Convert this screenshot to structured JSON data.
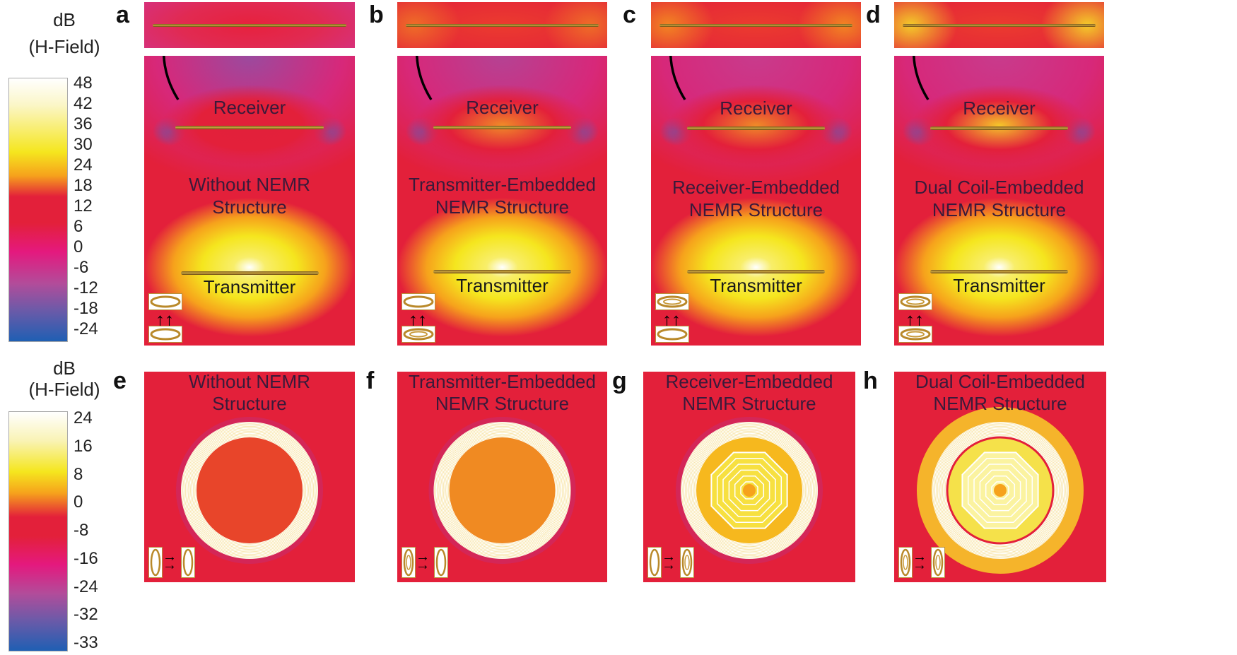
{
  "colorbar_top": {
    "title_unit": "dB",
    "title_quantity": "(H-Field)",
    "ticks": [
      "48",
      "42",
      "36",
      "30",
      "24",
      "18",
      "12",
      "6",
      "0",
      "-6",
      "-12",
      "-18",
      "-24"
    ]
  },
  "colorbar_bottom": {
    "title_unit": "dB",
    "title_quantity": "(H-Field)",
    "ticks": [
      "24",
      "16",
      "8",
      "0",
      "-8",
      "-16",
      "-24",
      "-32",
      "-33"
    ]
  },
  "colors": {
    "white": "#ffffff",
    "yellow": "#f5e61e",
    "orange": "#f6a21c",
    "red": "#e3203a",
    "magenta": "#e4197e",
    "purple": "#8a4fa6",
    "blue": "#1f5fb3"
  },
  "panels_side": [
    {
      "label": "a",
      "receiver": "Receiver",
      "transmitter": "Transmitter",
      "structure_line1": "Without NEMR",
      "structure_line2": "Structure"
    },
    {
      "label": "b",
      "receiver": "Receiver",
      "transmitter": "Transmitter",
      "structure_line1": "Transmitter-Embedded",
      "structure_line2": "NEMR Structure"
    },
    {
      "label": "c",
      "receiver": "Receiver",
      "transmitter": "Transmitter",
      "structure_line1": "Receiver-Embedded",
      "structure_line2": "NEMR Structure"
    },
    {
      "label": "d",
      "receiver": "Receiver",
      "transmitter": "Transmitter",
      "structure_line1": "Dual Coil-Embedded",
      "structure_line2": "NEMR Structure"
    }
  ],
  "panels_top": [
    {
      "label": "e",
      "structure_line1": "Without NEMR",
      "structure_line2": "Structure"
    },
    {
      "label": "f",
      "structure_line1": "Transmitter-Embedded",
      "structure_line2": "NEMR Structure"
    },
    {
      "label": "g",
      "structure_line1": "Receiver-Embedded",
      "structure_line2": "NEMR Structure"
    },
    {
      "label": "h",
      "structure_line1": "Dual Coil-Embedded",
      "structure_line2": "NEMR Structure"
    }
  ],
  "icons": {
    "vertical_arrows": "↑↑",
    "horizontal_arrows": "→→"
  }
}
